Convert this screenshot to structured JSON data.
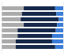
{
  "chart_data": {
    "type": "bar",
    "orientation": "horizontal",
    "stacked": true,
    "categories": [
      null,
      null,
      null,
      null,
      null,
      null,
      null,
      null
    ],
    "series": [
      {
        "color": "#ababab",
        "values": [
          36,
          33,
          31,
          36,
          26,
          26,
          23,
          23
        ]
      },
      {
        "color": "#17294a",
        "values": [
          51,
          56,
          62,
          54,
          62,
          56,
          59,
          64
        ]
      },
      {
        "color": "#3b7dd8",
        "values": [
          13,
          11,
          7,
          10,
          12,
          18,
          18,
          13
        ]
      }
    ],
    "xlim": [
      0,
      100
    ],
    "xticks": [
      0,
      100
    ],
    "grid": false,
    "tick_labels": false
  }
}
